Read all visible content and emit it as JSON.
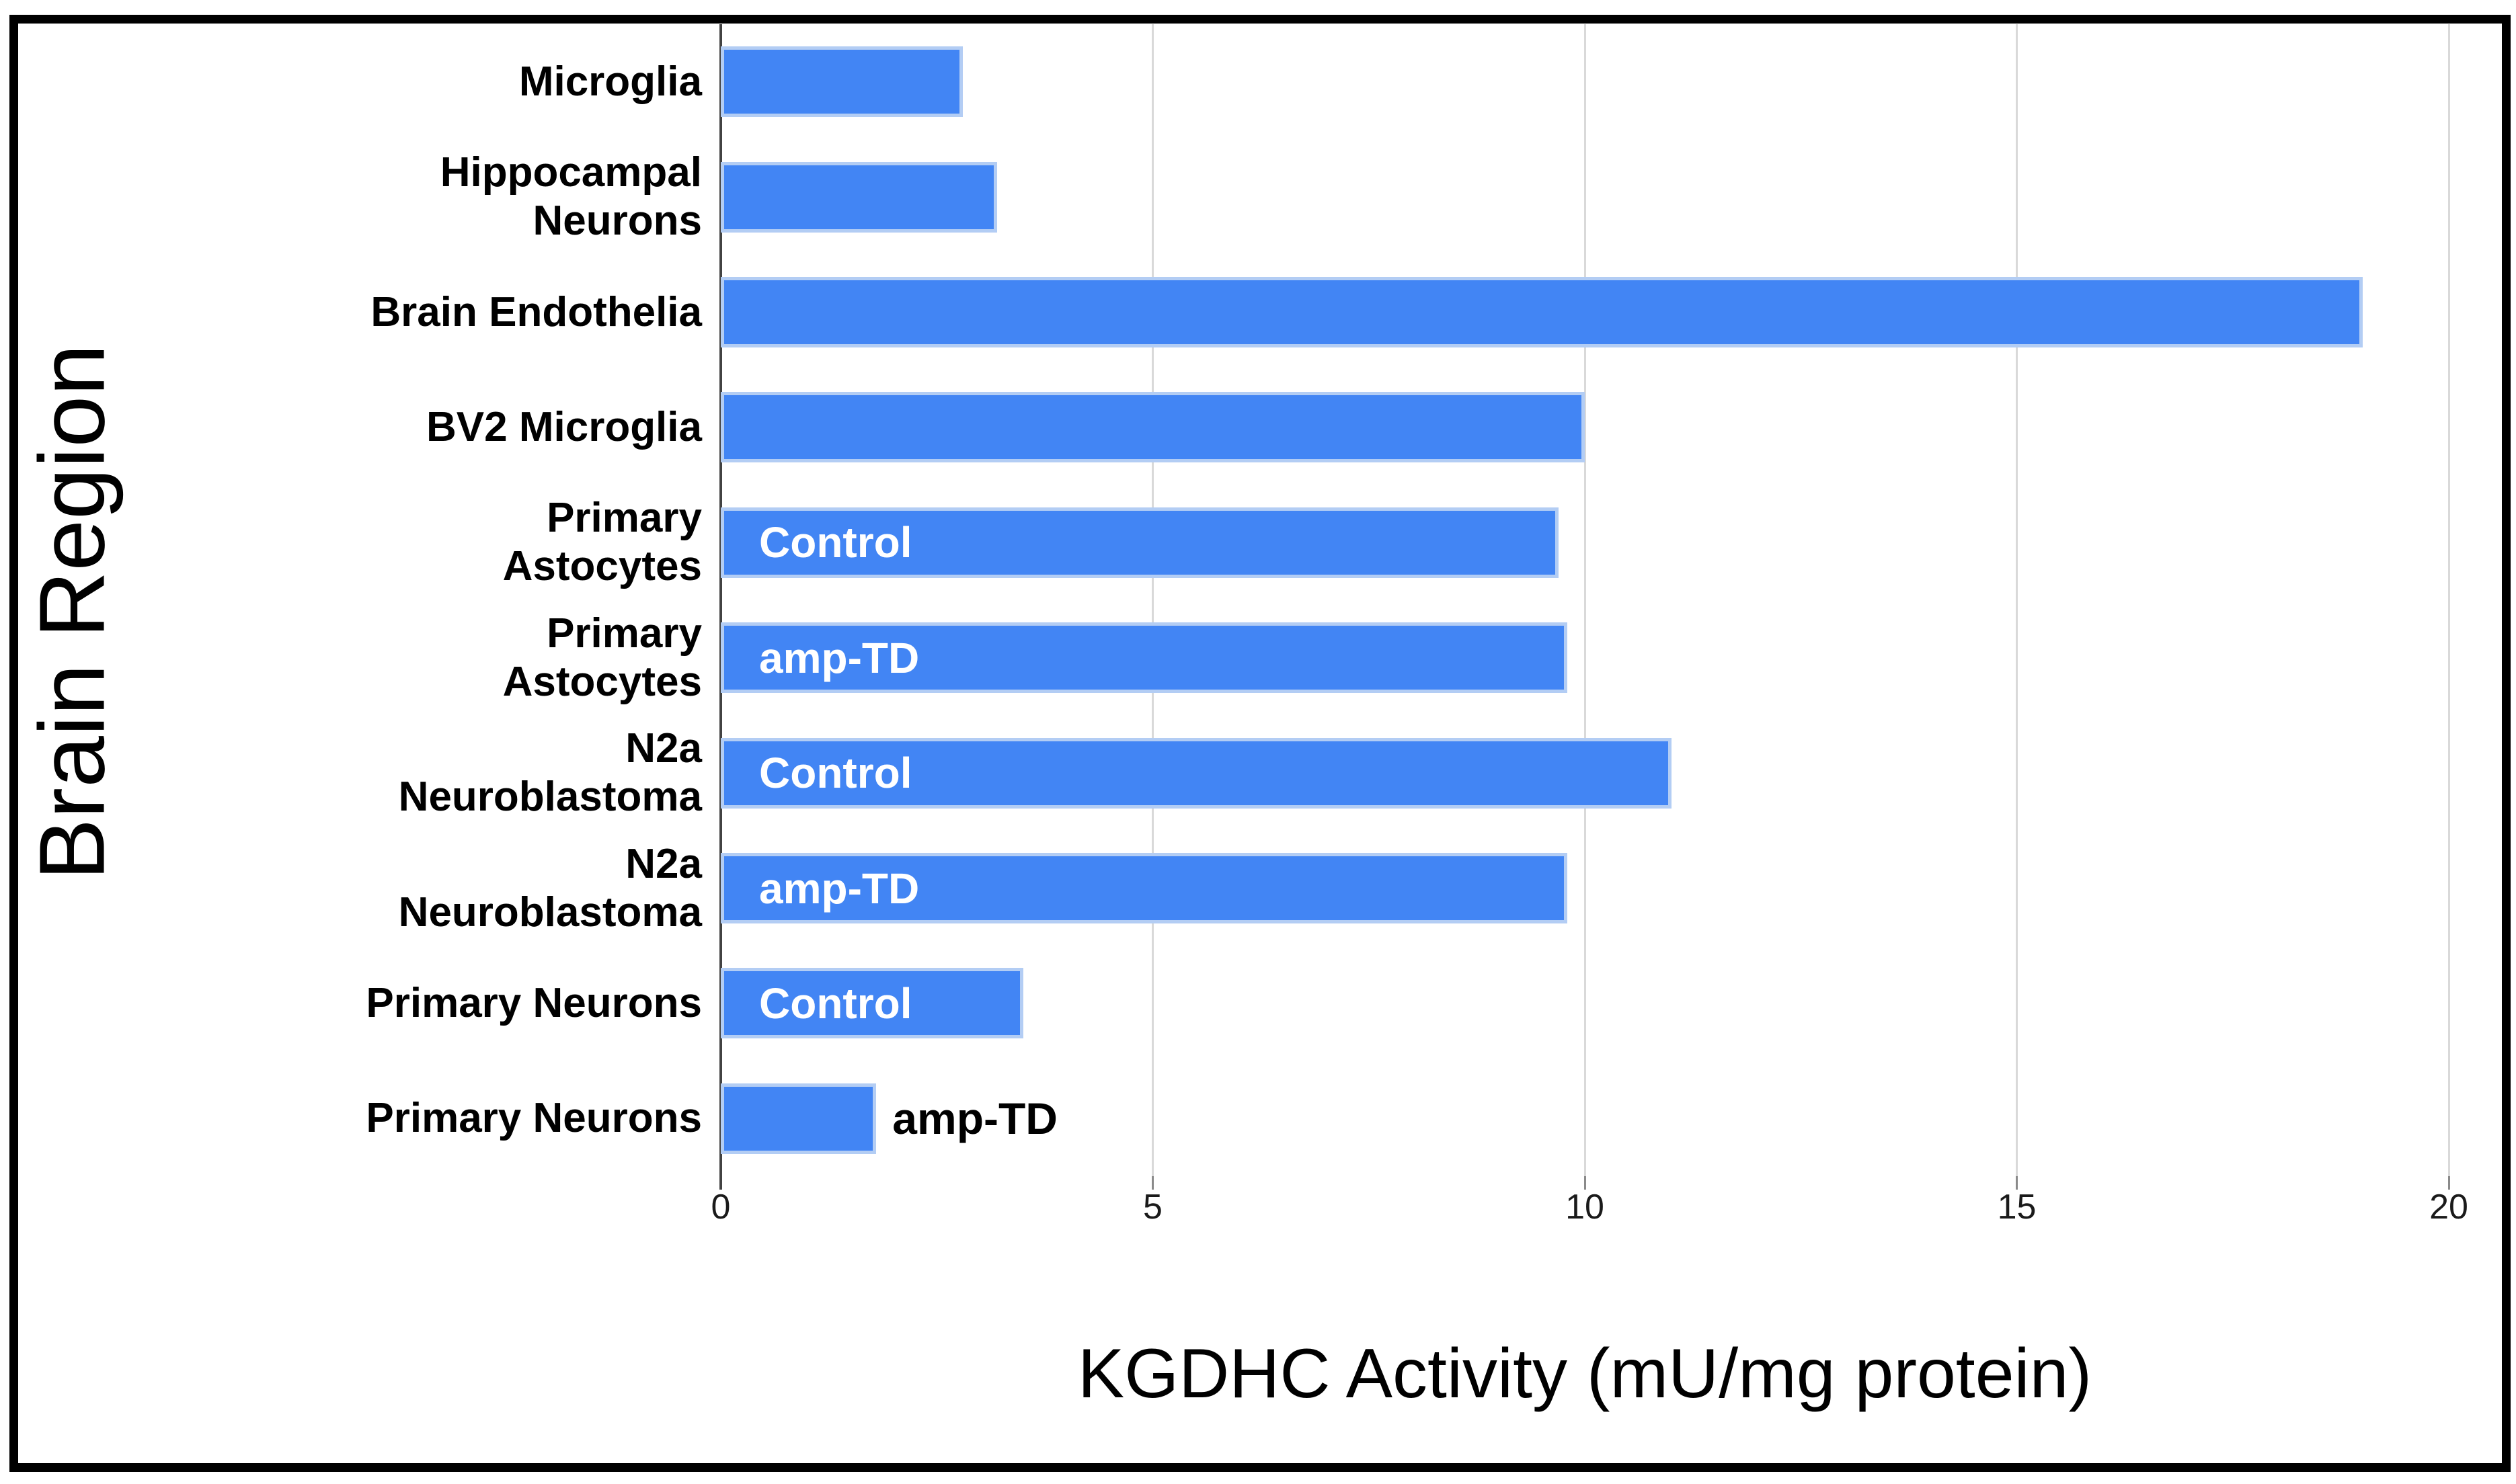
{
  "chart_data": {
    "type": "bar",
    "orientation": "horizontal",
    "title": "",
    "xlabel": "KGDHC Activity (mU/mg protein)",
    "ylabel": "Brain Region",
    "xlim": [
      0,
      20
    ],
    "xticks": [
      "0",
      "5",
      "10",
      "15",
      "20"
    ],
    "grid": "vertical gridlines at each x tick, dark axis line at 0",
    "legend": "none",
    "categories": [
      "Microglia",
      "Hippocampal Neurons",
      "Brain Endothelia",
      "BV2 Microglia",
      "Primary Astocytes",
      "Primary Astocytes",
      "N2a Neuroblastoma",
      "N2a Neuroblastoma",
      "Primary Neurons",
      "Primary Neurons"
    ],
    "values": [
      2.8,
      3.2,
      19,
      10,
      9.7,
      9.8,
      11,
      9.8,
      3.5,
      1.8
    ],
    "rows": [
      {
        "label_lines": [
          "Microglia"
        ],
        "value": 2.8,
        "annotation": "",
        "annotation_pos": "none"
      },
      {
        "label_lines": [
          "Hippocampal",
          "Neurons"
        ],
        "value": 3.2,
        "annotation": "",
        "annotation_pos": "none"
      },
      {
        "label_lines": [
          "Brain Endothelia"
        ],
        "value": 19,
        "annotation": "",
        "annotation_pos": "none"
      },
      {
        "label_lines": [
          "BV2 Microglia"
        ],
        "value": 10,
        "annotation": "",
        "annotation_pos": "none"
      },
      {
        "label_lines": [
          "Primary",
          "Astocytes"
        ],
        "value": 9.7,
        "annotation": "Control",
        "annotation_pos": "inside"
      },
      {
        "label_lines": [
          "Primary",
          "Astocytes"
        ],
        "value": 9.8,
        "annotation": "amp-TD",
        "annotation_pos": "inside"
      },
      {
        "label_lines": [
          "N2a",
          "Neuroblastoma"
        ],
        "value": 11,
        "annotation": "Control",
        "annotation_pos": "inside"
      },
      {
        "label_lines": [
          "N2a",
          "Neuroblastoma"
        ],
        "value": 9.8,
        "annotation": "amp-TD",
        "annotation_pos": "inside"
      },
      {
        "label_lines": [
          "Primary Neurons"
        ],
        "value": 3.5,
        "annotation": "Control",
        "annotation_pos": "inside"
      },
      {
        "label_lines": [
          "Primary Neurons"
        ],
        "value": 1.8,
        "annotation": "amp-TD",
        "annotation_pos": "outside"
      }
    ],
    "colors": {
      "bar": "#4285f4",
      "bar_border": "#b3cdf4",
      "zero_axis": "#424242",
      "gridline": "#d9d9d9",
      "tick_label": "#1a1a1a",
      "annotation_inside": "#ffffff",
      "annotation_outside": "#000000",
      "frame": "#000000",
      "background": "#ffffff"
    }
  }
}
